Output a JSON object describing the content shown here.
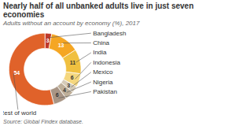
{
  "chart_data": {
    "type": "donut",
    "title": "Nearly half of all unbanked adults live in just seven economies",
    "subtitle": "Adults without an account by economy (%), 2017",
    "source": "Source: Global Findex database.",
    "categories": [
      "Bangladesh",
      "China",
      "India",
      "Indonesia",
      "Mexico",
      "Nigeria",
      "Pakistan",
      "Rest of world"
    ],
    "values": [
      3,
      13,
      11,
      6,
      3,
      4,
      6,
      54
    ],
    "colors": [
      "#c0392b",
      "#f5a623",
      "#f0c040",
      "#f5d77e",
      "#d6cbb8",
      "#bfb09a",
      "#a89585",
      "#e0622a"
    ],
    "data_labels": true
  }
}
